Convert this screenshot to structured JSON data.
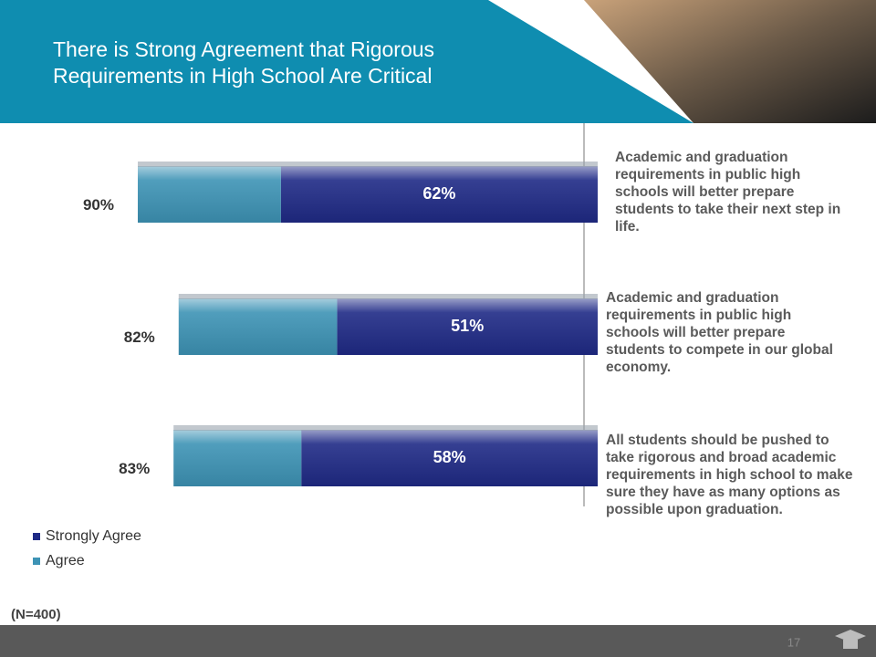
{
  "chart_data": {
    "type": "bar",
    "orientation": "horizontal",
    "stacked": true,
    "title": "There is Strong Agreement that Rigorous Requirements in High School Are Critical",
    "categories": [
      "Academic and graduation requirements in public high schools will better prepare students to take their next step in life.",
      "Academic and graduation requirements in public high schools will better prepare students to compete in our global economy.",
      "All students should be pushed to take rigorous and broad academic requirements in high school to make sure they have as many options as possible upon graduation."
    ],
    "series": [
      {
        "name": "Strongly Agree",
        "color": "#1f2a86",
        "values": [
          62,
          51,
          58
        ],
        "value_labels": [
          "62%",
          "51%",
          "58%"
        ]
      },
      {
        "name": "Agree",
        "color": "#3d93b5",
        "values": [
          28,
          31,
          25
        ]
      }
    ],
    "total_labels": [
      "90%",
      "82%",
      "83%"
    ]
  },
  "footer": {
    "note": "(N=400)",
    "page_number": "17"
  }
}
